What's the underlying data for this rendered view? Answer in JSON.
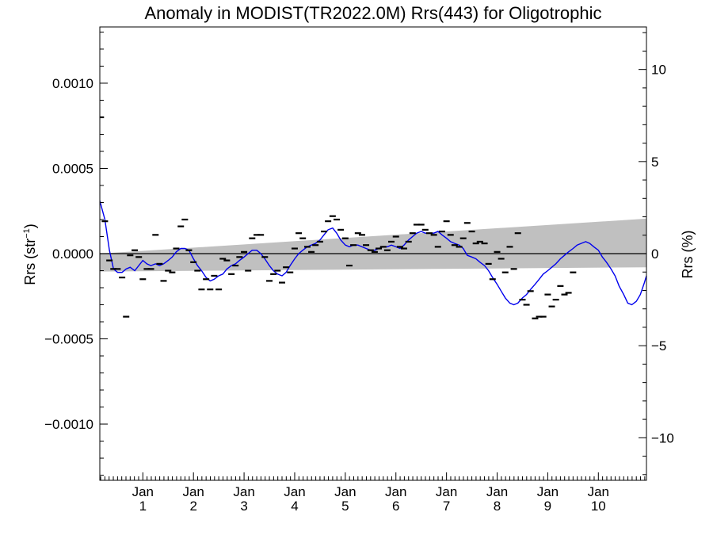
{
  "chart_data": {
    "type": "scatter",
    "title": "Anomaly in MODIST(TR2022.0M) Rrs(443) for Oligotrophic",
    "ylabel_left": {
      "text": "Rrs (str",
      "sup": "−1",
      "close": ")"
    },
    "ylabel_right": "Rrs (%)",
    "xlim": [
      -0.85,
      9.95
    ],
    "ylim": [
      -0.00133,
      0.00133
    ],
    "y2lim": [
      -12.31,
      12.31
    ],
    "x_ticks": [
      {
        "value": 0,
        "month": "Jan",
        "year": "1"
      },
      {
        "value": 1,
        "month": "Jan",
        "year": "2"
      },
      {
        "value": 2,
        "month": "Jan",
        "year": "3"
      },
      {
        "value": 3,
        "month": "Jan",
        "year": "4"
      },
      {
        "value": 4,
        "month": "Jan",
        "year": "5"
      },
      {
        "value": 5,
        "month": "Jan",
        "year": "6"
      },
      {
        "value": 6,
        "month": "Jan",
        "year": "7"
      },
      {
        "value": 7,
        "month": "Jan",
        "year": "8"
      },
      {
        "value": 8,
        "month": "Jan",
        "year": "9"
      },
      {
        "value": 9,
        "month": "Jan",
        "year": "10"
      }
    ],
    "y_left_ticks": [
      {
        "value": 0.001,
        "label": "0.0010"
      },
      {
        "value": 0.0005,
        "label": "0.0005"
      },
      {
        "value": 0.0,
        "label": "0.0000"
      },
      {
        "value": -0.0005,
        "label": "−0.0005"
      },
      {
        "value": -0.001,
        "label": "−0.0010"
      }
    ],
    "y_right_ticks": [
      {
        "value": 10,
        "label": "10"
      },
      {
        "value": 5,
        "label": "5"
      },
      {
        "value": 0,
        "label": "0"
      },
      {
        "value": -5,
        "label": "−5"
      },
      {
        "value": -10,
        "label": "−10"
      }
    ],
    "uncertainty_band": {
      "upper": [
        [
          -0.85,
          0.0
        ],
        [
          9.95,
          0.000205
        ]
      ],
      "lower": [
        [
          -0.85,
          -0.000105
        ],
        [
          9.95,
          -8e-05
        ]
      ],
      "color": "#c0c0c0"
    },
    "zero_line": 0.0,
    "monthly_anomalies": {
      "marker": "dash",
      "color": "#000000",
      "points": [
        [
          -0.83,
          0.0008
        ],
        [
          -0.75,
          0.00019
        ],
        [
          -0.66,
          -4e-05
        ],
        [
          -0.58,
          -9e-05
        ],
        [
          -0.5,
          -9e-05
        ],
        [
          -0.41,
          -0.00014
        ],
        [
          -0.33,
          -0.00037
        ],
        [
          -0.25,
          -1e-05
        ],
        [
          -0.16,
          2e-05
        ],
        [
          -0.08,
          -2e-05
        ],
        [
          0.0,
          -0.00015
        ],
        [
          0.08,
          -9e-05
        ],
        [
          0.16,
          -9e-05
        ],
        [
          0.25,
          0.00011
        ],
        [
          0.33,
          -6e-05
        ],
        [
          0.41,
          -0.00016
        ],
        [
          0.5,
          -0.0001
        ],
        [
          0.58,
          -0.00011
        ],
        [
          0.66,
          3e-05
        ],
        [
          0.75,
          0.00016
        ],
        [
          0.83,
          0.0002
        ],
        [
          0.91,
          2e-05
        ],
        [
          1.0,
          -5e-05
        ],
        [
          1.08,
          -0.0001
        ],
        [
          1.16,
          -0.00021
        ],
        [
          1.25,
          -0.00015
        ],
        [
          1.33,
          -0.00021
        ],
        [
          1.41,
          -0.00013
        ],
        [
          1.5,
          -0.00021
        ],
        [
          1.58,
          -3e-05
        ],
        [
          1.66,
          -4e-05
        ],
        [
          1.75,
          -0.00012
        ],
        [
          1.83,
          -7e-05
        ],
        [
          1.91,
          -2e-05
        ],
        [
          2.0,
          1e-05
        ],
        [
          2.08,
          -0.0001
        ],
        [
          2.16,
          9e-05
        ],
        [
          2.25,
          0.00011
        ],
        [
          2.33,
          0.00011
        ],
        [
          2.41,
          -2e-05
        ],
        [
          2.5,
          -0.00016
        ],
        [
          2.58,
          -0.00012
        ],
        [
          2.66,
          -0.0001
        ],
        [
          2.75,
          -0.00017
        ],
        [
          2.83,
          -8e-05
        ],
        [
          2.91,
          -0.00011
        ],
        [
          3.0,
          3e-05
        ],
        [
          3.08,
          0.00012
        ],
        [
          3.16,
          9e-05
        ],
        [
          3.25,
          4e-05
        ],
        [
          3.33,
          1e-05
        ],
        [
          3.41,
          5e-05
        ],
        [
          3.5,
          7e-05
        ],
        [
          3.58,
          0.00013
        ],
        [
          3.66,
          0.00019
        ],
        [
          3.75,
          0.00022
        ],
        [
          3.83,
          0.0002
        ],
        [
          3.91,
          0.00014
        ],
        [
          4.0,
          9e-05
        ],
        [
          4.08,
          -7e-05
        ],
        [
          4.16,
          5e-05
        ],
        [
          4.25,
          0.00012
        ],
        [
          4.33,
          0.00011
        ],
        [
          4.41,
          5e-05
        ],
        [
          4.5,
          2e-05
        ],
        [
          4.58,
          1e-05
        ],
        [
          4.66,
          3e-05
        ],
        [
          4.75,
          4e-05
        ],
        [
          4.83,
          2e-05
        ],
        [
          4.91,
          7e-05
        ],
        [
          5.0,
          0.0001
        ],
        [
          5.08,
          4e-05
        ],
        [
          5.16,
          3e-05
        ],
        [
          5.25,
          7e-05
        ],
        [
          5.33,
          0.00012
        ],
        [
          5.41,
          0.00017
        ],
        [
          5.5,
          0.00017
        ],
        [
          5.58,
          0.00014
        ],
        [
          5.66,
          0.00012
        ],
        [
          5.75,
          0.00011
        ],
        [
          5.83,
          4e-05
        ],
        [
          5.91,
          0.00013
        ],
        [
          6.0,
          0.00019
        ],
        [
          6.08,
          0.00011
        ],
        [
          6.16,
          5e-05
        ],
        [
          6.25,
          4e-05
        ],
        [
          6.33,
          9e-05
        ],
        [
          6.41,
          0.00018
        ],
        [
          6.5,
          0.00013
        ],
        [
          6.58,
          6e-05
        ],
        [
          6.66,
          7e-05
        ],
        [
          6.75,
          6e-05
        ],
        [
          6.83,
          -6e-05
        ],
        [
          6.91,
          -0.00015
        ],
        [
          7.0,
          1e-05
        ],
        [
          7.08,
          -3e-05
        ],
        [
          7.16,
          -0.00011
        ],
        [
          7.25,
          4e-05
        ],
        [
          7.33,
          -9e-05
        ],
        [
          7.41,
          0.00012
        ],
        [
          7.5,
          -0.00027
        ],
        [
          7.58,
          -0.0003
        ],
        [
          7.66,
          -0.00022
        ],
        [
          7.75,
          -0.00038
        ],
        [
          7.83,
          -0.00037
        ],
        [
          7.91,
          -0.00037
        ],
        [
          8.0,
          -0.00024
        ],
        [
          8.08,
          -0.00031
        ],
        [
          8.16,
          -0.00027
        ],
        [
          8.25,
          -0.00019
        ],
        [
          8.33,
          -0.00024
        ],
        [
          8.41,
          -0.00023
        ],
        [
          8.5,
          -0.00011
        ]
      ]
    },
    "running_mean": {
      "color": "#0000ee",
      "points": [
        [
          -0.85,
          0.00031
        ],
        [
          -0.75,
          0.0002
        ],
        [
          -0.66,
          2e-05
        ],
        [
          -0.58,
          -9e-05
        ],
        [
          -0.5,
          -0.00011
        ],
        [
          -0.41,
          -0.00011
        ],
        [
          -0.33,
          -9e-05
        ],
        [
          -0.25,
          -8e-05
        ],
        [
          -0.16,
          -0.0001
        ],
        [
          -0.08,
          -7e-05
        ],
        [
          0.0,
          -4e-05
        ],
        [
          0.08,
          -6e-05
        ],
        [
          0.16,
          -7e-05
        ],
        [
          0.25,
          -6e-05
        ],
        [
          0.33,
          -7e-05
        ],
        [
          0.41,
          -6e-05
        ],
        [
          0.5,
          -4e-05
        ],
        [
          0.58,
          -2e-05
        ],
        [
          0.66,
          1e-05
        ],
        [
          0.75,
          3e-05
        ],
        [
          0.83,
          3e-05
        ],
        [
          0.91,
          2e-05
        ],
        [
          1.0,
          -3e-05
        ],
        [
          1.08,
          -7e-05
        ],
        [
          1.16,
          -0.0001
        ],
        [
          1.25,
          -0.00014
        ],
        [
          1.33,
          -0.00016
        ],
        [
          1.41,
          -0.00015
        ],
        [
          1.5,
          -0.00013
        ],
        [
          1.58,
          -0.00012
        ],
        [
          1.66,
          -9e-05
        ],
        [
          1.75,
          -7e-05
        ],
        [
          1.83,
          -6e-05
        ],
        [
          1.91,
          -4e-05
        ],
        [
          2.0,
          -2e-05
        ],
        [
          2.08,
          0.0
        ],
        [
          2.16,
          2e-05
        ],
        [
          2.25,
          2e-05
        ],
        [
          2.33,
          0.0
        ],
        [
          2.41,
          -3e-05
        ],
        [
          2.5,
          -7e-05
        ],
        [
          2.58,
          -0.0001
        ],
        [
          2.66,
          -0.00012
        ],
        [
          2.75,
          -0.00013
        ],
        [
          2.83,
          -0.00011
        ],
        [
          2.91,
          -7e-05
        ],
        [
          3.0,
          -3e-05
        ],
        [
          3.08,
          0.0
        ],
        [
          3.16,
          2e-05
        ],
        [
          3.25,
          4e-05
        ],
        [
          3.33,
          5e-05
        ],
        [
          3.41,
          6e-05
        ],
        [
          3.5,
          8e-05
        ],
        [
          3.58,
          0.00011
        ],
        [
          3.66,
          0.00014
        ],
        [
          3.75,
          0.00015
        ],
        [
          3.83,
          0.00012
        ],
        [
          3.91,
          8e-05
        ],
        [
          4.0,
          5e-05
        ],
        [
          4.08,
          4e-05
        ],
        [
          4.16,
          5e-05
        ],
        [
          4.25,
          5e-05
        ],
        [
          4.33,
          4e-05
        ],
        [
          4.41,
          3e-05
        ],
        [
          4.5,
          2e-05
        ],
        [
          4.58,
          2e-05
        ],
        [
          4.66,
          3e-05
        ],
        [
          4.75,
          4e-05
        ],
        [
          4.83,
          4e-05
        ],
        [
          4.91,
          5e-05
        ],
        [
          5.0,
          4e-05
        ],
        [
          5.08,
          3e-05
        ],
        [
          5.16,
          5e-05
        ],
        [
          5.25,
          8e-05
        ],
        [
          5.33,
          0.0001
        ],
        [
          5.41,
          0.00012
        ],
        [
          5.5,
          0.00013
        ],
        [
          5.58,
          0.00012
        ],
        [
          5.66,
          0.00012
        ],
        [
          5.75,
          0.00012
        ],
        [
          5.83,
          0.00013
        ],
        [
          5.91,
          0.00011
        ],
        [
          6.0,
          9e-05
        ],
        [
          6.08,
          7e-05
        ],
        [
          6.16,
          6e-05
        ],
        [
          6.25,
          5e-05
        ],
        [
          6.33,
          3e-05
        ],
        [
          6.41,
          -1e-05
        ],
        [
          6.5,
          -2e-05
        ],
        [
          6.58,
          -3e-05
        ],
        [
          6.66,
          -5e-05
        ],
        [
          6.75,
          -7e-05
        ],
        [
          6.83,
          -0.0001
        ],
        [
          6.91,
          -0.00014
        ],
        [
          7.0,
          -0.00018
        ],
        [
          7.08,
          -0.00022
        ],
        [
          7.16,
          -0.00026
        ],
        [
          7.25,
          -0.00029
        ],
        [
          7.33,
          -0.0003
        ],
        [
          7.41,
          -0.00029
        ],
        [
          7.5,
          -0.00026
        ],
        [
          7.58,
          -0.00024
        ],
        [
          7.66,
          -0.00021
        ],
        [
          7.75,
          -0.00018
        ],
        [
          7.83,
          -0.00015
        ],
        [
          7.91,
          -0.00012
        ],
        [
          8.0,
          -0.0001
        ],
        [
          8.08,
          -8e-05
        ],
        [
          8.16,
          -6e-05
        ],
        [
          8.25,
          -3e-05
        ],
        [
          8.33,
          -1e-05
        ],
        [
          8.41,
          1e-05
        ],
        [
          8.5,
          3e-05
        ],
        [
          8.58,
          5e-05
        ],
        [
          8.66,
          6e-05
        ],
        [
          8.75,
          7e-05
        ],
        [
          8.83,
          6e-05
        ],
        [
          8.91,
          4e-05
        ],
        [
          9.0,
          2e-05
        ],
        [
          9.08,
          -2e-05
        ],
        [
          9.16,
          -5e-05
        ],
        [
          9.25,
          -9e-05
        ],
        [
          9.33,
          -0.00013
        ],
        [
          9.41,
          -0.00019
        ],
        [
          9.5,
          -0.00024
        ],
        [
          9.58,
          -0.00029
        ],
        [
          9.66,
          -0.0003
        ],
        [
          9.75,
          -0.00028
        ],
        [
          9.83,
          -0.00024
        ],
        [
          9.91,
          -0.00017
        ],
        [
          9.95,
          -0.00013
        ]
      ]
    },
    "grid": false,
    "legend": "none"
  }
}
